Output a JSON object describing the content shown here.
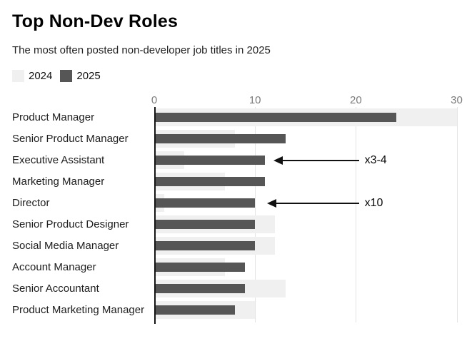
{
  "header": {
    "title": "Top Non-Dev Roles",
    "subtitle": "The most often posted non-developer job titles in 2025"
  },
  "legend": [
    {
      "label": "2024",
      "color": "#f0f0f0"
    },
    {
      "label": "2025",
      "color": "#565656"
    }
  ],
  "chart_data": {
    "type": "bar",
    "orientation": "horizontal",
    "title": "Top Non-Dev Roles",
    "subtitle": "The most often posted non-developer job titles in 2025",
    "xlabel": "",
    "ylabel": "",
    "xlim": [
      0,
      30
    ],
    "xticks": [
      0,
      10,
      20,
      30
    ],
    "grid": "vertical",
    "legend_position": "top-left",
    "categories": [
      "Product Manager",
      "Senior Product Manager",
      "Executive Assistant",
      "Marketing Manager",
      "Director",
      "Senior Product Designer",
      "Social Media Manager",
      "Account Manager",
      "Senior Accountant",
      "Product Marketing Manager"
    ],
    "series": [
      {
        "name": "2024",
        "color": "#f0f0f0",
        "values": [
          30,
          8,
          3,
          7,
          1,
          12,
          12,
          7,
          13,
          10
        ]
      },
      {
        "name": "2025",
        "color": "#565656",
        "values": [
          24,
          13,
          11,
          11,
          10,
          10,
          10,
          9,
          9,
          8
        ]
      }
    ],
    "annotations": [
      {
        "text": "x3-4",
        "target_category": "Executive Assistant",
        "row_index": 2,
        "tip_value": 11.8,
        "tail_value": 20.3
      },
      {
        "text": "x10",
        "target_category": "Director",
        "row_index": 4,
        "tip_value": 11.2,
        "tail_value": 20.3
      }
    ]
  },
  "colors": {
    "bar_2024": "#f0f0f0",
    "bar_2025": "#565656",
    "gridline": "#e4e4e4",
    "axis_line": "#151515",
    "tick_text": "#7b7b7b",
    "label_text": "#1c1c1c",
    "annotation": "#111111"
  }
}
